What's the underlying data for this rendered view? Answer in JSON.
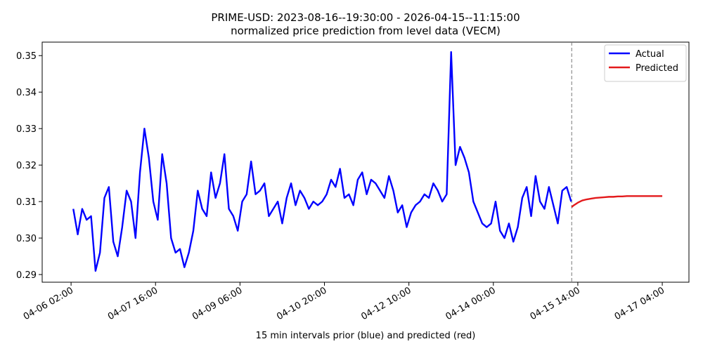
{
  "chart_data": {
    "type": "line",
    "title": "PRIME-USD: 2023-08-16--19:30:00 - 2026-04-15--11:15:00",
    "subtitle": "normalized price prediction from level data (VECM)",
    "xlabel": "15 min intervals prior (blue) and predicted (red)",
    "xlim": [
      "04-05 13:00",
      "04-17 16:00"
    ],
    "xticks": [
      "04-06 02:00",
      "04-07 16:00",
      "04-09 06:00",
      "04-10 20:00",
      "04-12 10:00",
      "04-14 00:00",
      "04-15 14:00",
      "04-17 04:00"
    ],
    "ylim": [
      0.2879,
      0.3537
    ],
    "yticks": [
      0.29,
      {
        "value": 0.3,
        "label": "0.30"
      },
      0.31,
      0.32,
      0.33,
      0.34,
      0.35
    ],
    "legend": "upper right",
    "series": [
      {
        "name": "Actual",
        "color": "#0000ff",
        "x": [
          "04-06 03:00",
          "04-06 05:00",
          "04-06 07:00",
          "04-06 09:00",
          "04-06 11:00",
          "04-06 13:00",
          "04-06 15:00",
          "04-06 17:00",
          "04-06 19:00",
          "04-06 21:00",
          "04-06 23:00",
          "04-07 01:00",
          "04-07 03:00",
          "04-07 05:00",
          "04-07 07:00",
          "04-07 09:00",
          "04-07 11:00",
          "04-07 13:00",
          "04-07 15:00",
          "04-07 17:00",
          "04-07 19:00",
          "04-07 21:00",
          "04-07 23:00",
          "04-08 01:00",
          "04-08 03:00",
          "04-08 05:00",
          "04-08 07:00",
          "04-08 09:00",
          "04-08 11:00",
          "04-08 13:00",
          "04-08 15:00",
          "04-08 17:00",
          "04-08 19:00",
          "04-08 21:00",
          "04-08 23:00",
          "04-09 01:00",
          "04-09 03:00",
          "04-09 05:00",
          "04-09 07:00",
          "04-09 09:00",
          "04-09 11:00",
          "04-09 13:00",
          "04-09 15:00",
          "04-09 17:00",
          "04-09 19:00",
          "04-09 21:00",
          "04-09 23:00",
          "04-10 01:00",
          "04-10 03:00",
          "04-10 05:00",
          "04-10 07:00",
          "04-10 09:00",
          "04-10 11:00",
          "04-10 13:00",
          "04-10 15:00",
          "04-10 17:00",
          "04-10 19:00",
          "04-10 21:00",
          "04-10 23:00",
          "04-11 01:00",
          "04-11 03:00",
          "04-11 05:00",
          "04-11 07:00",
          "04-11 09:00",
          "04-11 11:00",
          "04-11 13:00",
          "04-11 15:00",
          "04-11 17:00",
          "04-11 19:00",
          "04-11 21:00",
          "04-11 23:00",
          "04-12 01:00",
          "04-12 03:00",
          "04-12 05:00",
          "04-12 07:00",
          "04-12 09:00",
          "04-12 11:00",
          "04-12 13:00",
          "04-12 15:00",
          "04-12 17:00",
          "04-12 19:00",
          "04-12 21:00",
          "04-12 23:00",
          "04-13 01:00",
          "04-13 03:00",
          "04-13 05:00",
          "04-13 07:00",
          "04-13 09:00",
          "04-13 11:00",
          "04-13 13:00",
          "04-13 15:00",
          "04-13 17:00",
          "04-13 19:00",
          "04-13 21:00",
          "04-13 23:00",
          "04-14 01:00",
          "04-14 03:00",
          "04-14 05:00",
          "04-14 07:00",
          "04-14 09:00",
          "04-14 11:00",
          "04-14 13:00",
          "04-14 15:00",
          "04-14 17:00",
          "04-14 19:00",
          "04-14 21:00",
          "04-14 23:00",
          "04-15 01:00",
          "04-15 03:00",
          "04-15 05:00",
          "04-15 07:00",
          "04-15 09:00",
          "04-15 11:00"
        ],
        "values": [
          0.308,
          0.301,
          0.308,
          0.305,
          0.306,
          0.291,
          0.296,
          0.311,
          0.314,
          0.299,
          0.295,
          0.303,
          0.313,
          0.31,
          0.3,
          0.318,
          0.33,
          0.322,
          0.31,
          0.305,
          0.323,
          0.315,
          0.3,
          0.296,
          0.297,
          0.292,
          0.296,
          0.302,
          0.313,
          0.308,
          0.306,
          0.318,
          0.311,
          0.315,
          0.323,
          0.308,
          0.306,
          0.302,
          0.31,
          0.312,
          0.321,
          0.312,
          0.313,
          0.315,
          0.306,
          0.308,
          0.31,
          0.304,
          0.311,
          0.315,
          0.309,
          0.313,
          0.311,
          0.308,
          0.31,
          0.309,
          0.31,
          0.312,
          0.316,
          0.314,
          0.319,
          0.311,
          0.312,
          0.309,
          0.316,
          0.318,
          0.312,
          0.316,
          0.315,
          0.313,
          0.311,
          0.317,
          0.313,
          0.307,
          0.309,
          0.303,
          0.307,
          0.309,
          0.31,
          0.312,
          0.311,
          0.315,
          0.313,
          0.31,
          0.312,
          0.351,
          0.32,
          0.325,
          0.322,
          0.318,
          0.31,
          0.307,
          0.304,
          0.303,
          0.304,
          0.31,
          0.302,
          0.3,
          0.304,
          0.299,
          0.303,
          0.311,
          0.314,
          0.306,
          0.317,
          0.31,
          0.308,
          0.314,
          0.309,
          0.304,
          0.313,
          0.314,
          0.31
        ]
      },
      {
        "name": "Predicted",
        "color": "#e31a1c",
        "x": [
          "04-15 11:15",
          "04-15 12:00",
          "04-15 14:00",
          "04-15 16:00",
          "04-15 18:00",
          "04-15 20:00",
          "04-15 22:00",
          "04-16 00:00",
          "04-16 02:00",
          "04-16 04:00",
          "04-16 06:00",
          "04-16 08:00",
          "04-16 10:00",
          "04-16 12:00",
          "04-16 14:00",
          "04-16 16:00",
          "04-16 18:00",
          "04-16 20:00",
          "04-16 22:00",
          "04-17 00:00",
          "04-17 02:00",
          "04-17 04:00"
        ],
        "values": [
          0.3085,
          0.3089,
          0.3097,
          0.3103,
          0.3106,
          0.3108,
          0.311,
          0.3111,
          0.3112,
          0.3113,
          0.3113,
          0.3114,
          0.3114,
          0.3115,
          0.3115,
          0.3115,
          0.3115,
          0.3115,
          0.3115,
          0.3115,
          0.3115,
          0.3115
        ]
      }
    ]
  }
}
